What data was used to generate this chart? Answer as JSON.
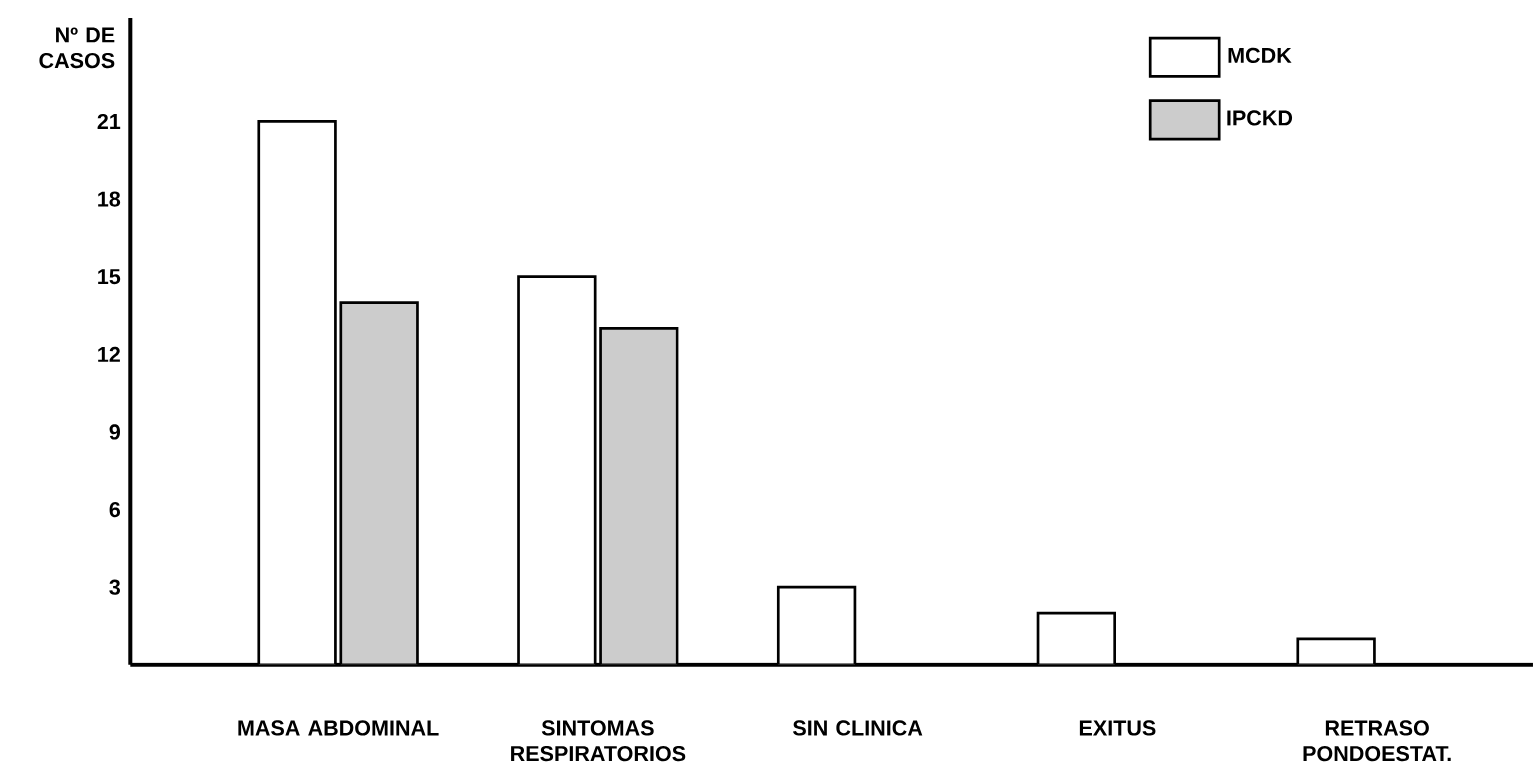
{
  "chart_data": {
    "type": "bar",
    "ylabel": "Nº DE CASOS",
    "categories": [
      "MASA ABDOMINAL",
      "SINTOMAS RESPIRATORIOS",
      "SIN CLINICA",
      "EXITUS",
      "RETRASO PONDOESTAT."
    ],
    "series": [
      {
        "name": "MCDK",
        "color": "#ffffff",
        "values": [
          21,
          15,
          3,
          2,
          1
        ]
      },
      {
        "name": "IPCKD",
        "color": "#cccccc",
        "values": [
          14,
          13,
          null,
          null,
          null
        ]
      }
    ],
    "ylim": [
      0,
      25
    ],
    "yticks": [
      3,
      6,
      9,
      12,
      15,
      18,
      21
    ],
    "legend": "top right"
  }
}
